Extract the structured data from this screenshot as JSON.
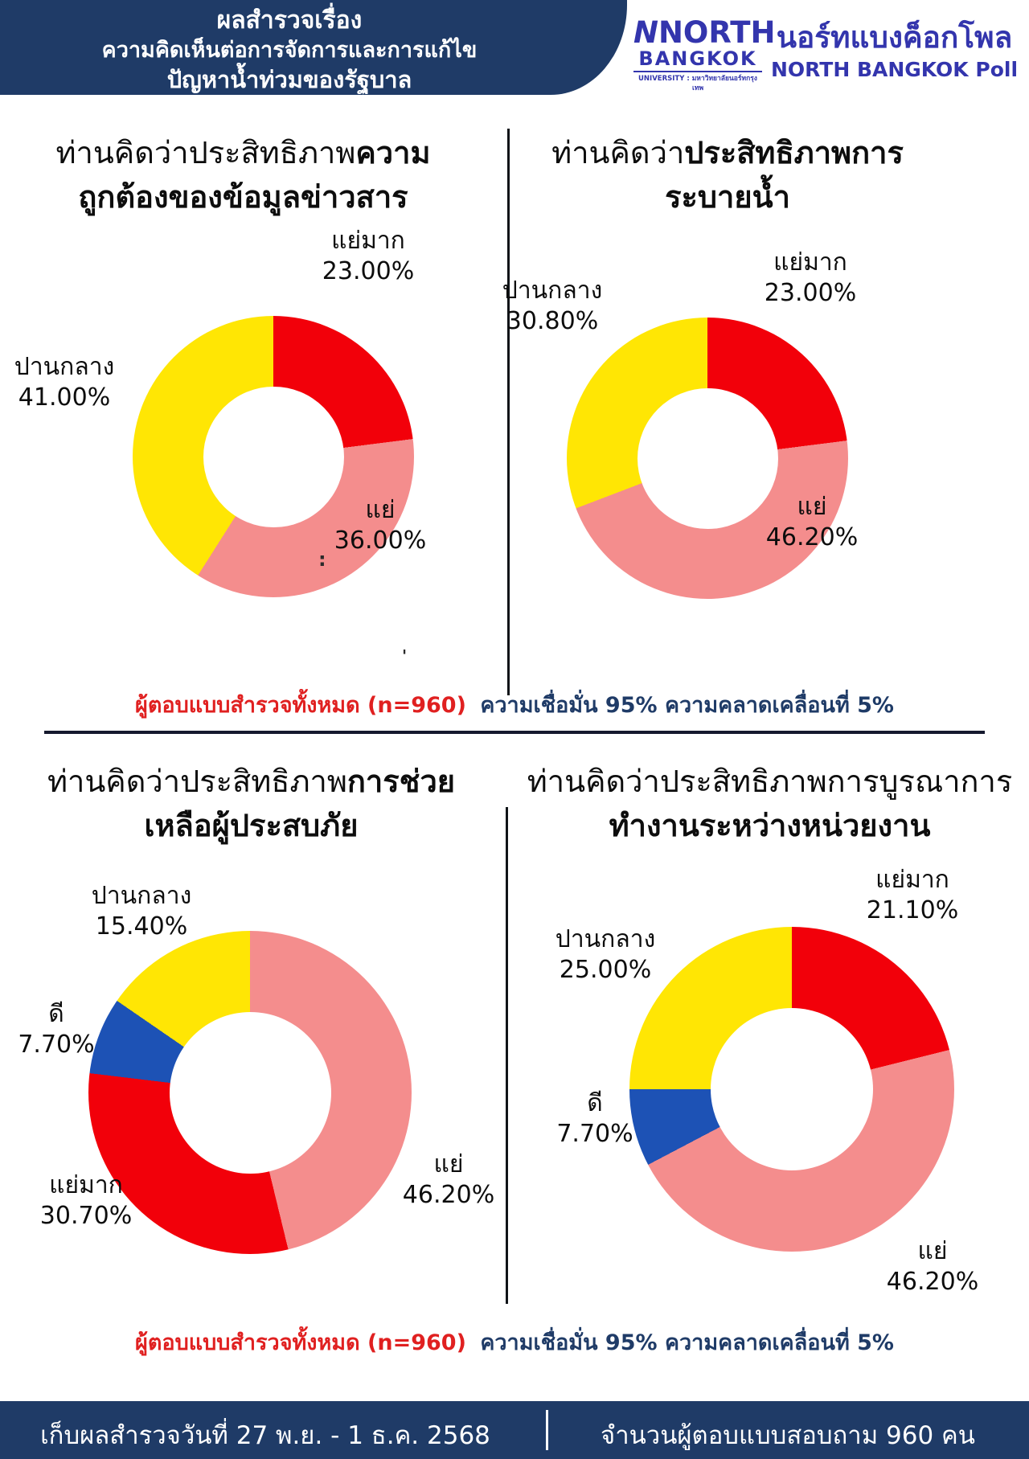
{
  "header": {
    "line1": "ผลสำรวจเรื่อง",
    "line2": "ความคิดเห็นต่อการจัดการและการแก้ไข",
    "line3": "ปัญหาน้ำท่วมของรัฐบาล"
  },
  "logo": {
    "name_top": "NORTH",
    "name_bottom": "BANGKOK",
    "university": "UNIVERSITY : มหาวิทยาลัยนอร์ทกรุงเทพ",
    "poll_thai": "นอร์ทแบงค็อกโพล",
    "poll_en": "NORTH BANGKOK Poll"
  },
  "note": {
    "red": "ผู้ตอบแบบสำรวจทั้งหมด (n=960)",
    "rest": "ความเชื่อมั่น 95% ความคลาดเคลื่อนที่ 5%"
  },
  "footer": {
    "left": "เก็บผลสำรวจวันที่ 27 พ.ย. - 1 ธ.ค. 2568",
    "right": "จำนวนผู้ตอบแบบสอบถาม 960 คน"
  },
  "artifacts": {
    "colon": ":",
    "tick": "'"
  },
  "colors": {
    "navy": "#1f3b67",
    "red": "#f2000a",
    "pink": "#f48d8d",
    "yellow": "#ffe604",
    "blue": "#1d52b5",
    "logo_blue": "#3335ad",
    "note_red": "#e02020"
  },
  "chart_data": [
    {
      "type": "pie",
      "donut": true,
      "title_pre": "ท่านคิดว่าประสิทธิภาพ",
      "title_bold": "ความ",
      "title_line2": "ถูกต้องของข้อมูลข่าวสาร",
      "legend": "none",
      "segments": [
        {
          "label": "แย่มาก",
          "value": 23.0,
          "display": "23.00%",
          "color": "#f2000a"
        },
        {
          "label": "แย่",
          "value": 36.0,
          "display": "36.00%",
          "color": "#f48d8d"
        },
        {
          "label": "ปานกลาง",
          "value": 41.0,
          "display": "41.00%",
          "color": "#ffe604"
        }
      ]
    },
    {
      "type": "pie",
      "donut": true,
      "title_pre": "ท่านคิดว่า",
      "title_bold": "ประสิทธิภาพการ",
      "title_line2": "ระบายน้ำ",
      "legend": "none",
      "segments": [
        {
          "label": "แย่มาก",
          "value": 23.0,
          "display": "23.00%",
          "color": "#f2000a"
        },
        {
          "label": "แย่",
          "value": 46.2,
          "display": "46.20%",
          "color": "#f48d8d"
        },
        {
          "label": "ปานกลาง",
          "value": 30.8,
          "display": "30.80%",
          "color": "#ffe604"
        }
      ]
    },
    {
      "type": "pie",
      "donut": true,
      "title_pre": "ท่านคิดว่าประสิทธิภาพ",
      "title_bold": "การช่วย",
      "title_line2": "เหลือผู้ประสบภัย",
      "legend": "none",
      "segments": [
        {
          "label": "แย่",
          "value": 46.2,
          "display": "46.20%",
          "color": "#f48d8d"
        },
        {
          "label": "แย่มาก",
          "value": 30.7,
          "display": "30.70%",
          "color": "#f2000a"
        },
        {
          "label": "ดี",
          "value": 7.7,
          "display": "7.70%",
          "color": "#1d52b5"
        },
        {
          "label": "ปานกลาง",
          "value": 15.4,
          "display": "15.40%",
          "color": "#ffe604"
        }
      ]
    },
    {
      "type": "pie",
      "donut": true,
      "title_pre": "ท่านคิดว่าประสิทธิภาพการบูรณาการ",
      "title_bold": "",
      "title_line2": "ทำงานระหว่างหน่วยงาน",
      "legend": "none",
      "segments": [
        {
          "label": "แย่มาก",
          "value": 21.1,
          "display": "21.10%",
          "color": "#f2000a"
        },
        {
          "label": "แย่",
          "value": 46.2,
          "display": "46.20%",
          "color": "#f48d8d"
        },
        {
          "label": "ดี",
          "value": 7.7,
          "display": "7.70%",
          "color": "#1d52b5"
        },
        {
          "label": "ปานกลาง",
          "value": 25.0,
          "display": "25.00%",
          "color": "#ffe604"
        }
      ]
    }
  ]
}
